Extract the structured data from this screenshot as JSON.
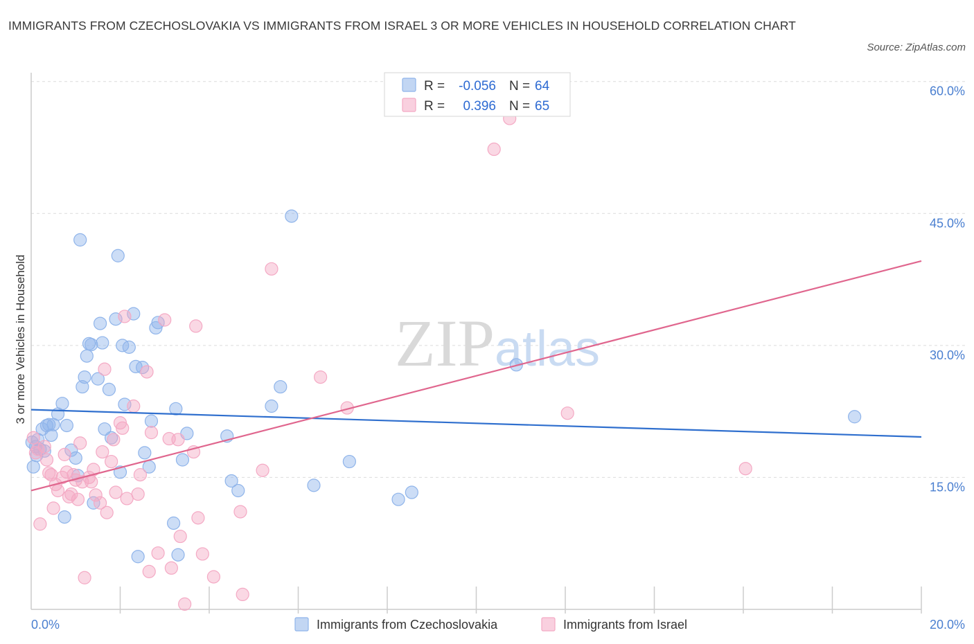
{
  "chart_data": {
    "type": "scatter",
    "title": "IMMIGRANTS FROM CZECHOSLOVAKIA VS IMMIGRANTS FROM ISRAEL 3 OR MORE VEHICLES IN HOUSEHOLD CORRELATION CHART",
    "source": "Source: ZipAtlas.com",
    "ylabel": "3 or more Vehicles in Household",
    "xlabel": "",
    "xlim": [
      0,
      20
    ],
    "ylim": [
      0,
      61
    ],
    "y_ticks": [
      15,
      30,
      45,
      60
    ],
    "y_tick_labels": [
      "15.0%",
      "30.0%",
      "45.0%",
      "60.0%"
    ],
    "x_tick_labels": [
      "0.0%",
      "20.0%"
    ],
    "watermark": "ZIPatlas",
    "legend": [
      {
        "label_r": "R =",
        "r": "-0.056",
        "label_n": "N =",
        "n": "64"
      },
      {
        "label_r": "R =",
        "r": "0.396",
        "label_n": "N =",
        "n": "65"
      }
    ],
    "series": [
      {
        "name": "Immigrants from Czechoslovakia",
        "color": "#8fb4ea",
        "line_color": "#2f6fce",
        "trend": {
          "x0": 0,
          "y0": 22.7,
          "x1": 20,
          "y1": 19.6
        },
        "points": [
          [
            0.05,
            16.2
          ],
          [
            0.1,
            18.5
          ],
          [
            0.15,
            19.3
          ],
          [
            0.2,
            18.2
          ],
          [
            0.25,
            20.5
          ],
          [
            0.3,
            18.0
          ],
          [
            0.35,
            20.9
          ],
          [
            0.4,
            21.0
          ],
          [
            0.5,
            21.0
          ],
          [
            0.6,
            22.2
          ],
          [
            0.7,
            23.4
          ],
          [
            0.75,
            10.5
          ],
          [
            0.8,
            20.9
          ],
          [
            0.9,
            18.1
          ],
          [
            1.0,
            17.2
          ],
          [
            1.05,
            15.2
          ],
          [
            1.1,
            42.0
          ],
          [
            1.15,
            25.3
          ],
          [
            1.2,
            26.4
          ],
          [
            1.25,
            28.8
          ],
          [
            1.3,
            30.2
          ],
          [
            1.35,
            30.1
          ],
          [
            1.4,
            12.1
          ],
          [
            1.5,
            26.2
          ],
          [
            1.55,
            32.5
          ],
          [
            1.6,
            30.3
          ],
          [
            1.65,
            20.5
          ],
          [
            1.75,
            25.0
          ],
          [
            1.8,
            19.5
          ],
          [
            1.9,
            33.0
          ],
          [
            1.95,
            40.2
          ],
          [
            2.0,
            15.6
          ],
          [
            2.05,
            30.0
          ],
          [
            2.1,
            23.3
          ],
          [
            2.2,
            29.8
          ],
          [
            2.3,
            33.6
          ],
          [
            2.35,
            27.6
          ],
          [
            2.4,
            6.0
          ],
          [
            2.5,
            27.5
          ],
          [
            2.55,
            17.8
          ],
          [
            2.65,
            16.2
          ],
          [
            2.7,
            21.4
          ],
          [
            2.8,
            32.0
          ],
          [
            2.85,
            32.6
          ],
          [
            3.2,
            9.8
          ],
          [
            3.25,
            22.8
          ],
          [
            3.3,
            6.2
          ],
          [
            3.4,
            17.0
          ],
          [
            3.5,
            20.0
          ],
          [
            4.4,
            19.7
          ],
          [
            4.5,
            14.6
          ],
          [
            4.65,
            13.5
          ],
          [
            5.4,
            23.1
          ],
          [
            5.6,
            25.3
          ],
          [
            5.85,
            44.7
          ],
          [
            6.35,
            14.1
          ],
          [
            7.15,
            16.8
          ],
          [
            8.25,
            12.5
          ],
          [
            8.55,
            13.3
          ],
          [
            10.9,
            27.8
          ],
          [
            18.5,
            21.9
          ],
          [
            0.02,
            19.0
          ],
          [
            0.12,
            17.5
          ],
          [
            0.45,
            19.8
          ]
        ]
      },
      {
        "name": "Immigrants from Israel",
        "color": "#f4a9c4",
        "line_color": "#e0668e",
        "trend": {
          "x0": 0,
          "y0": 13.5,
          "x1": 20,
          "y1": 39.6
        },
        "points": [
          [
            0.05,
            19.5
          ],
          [
            0.15,
            18.2
          ],
          [
            0.2,
            9.7
          ],
          [
            0.3,
            18.5
          ],
          [
            0.35,
            17.0
          ],
          [
            0.4,
            15.5
          ],
          [
            0.45,
            15.3
          ],
          [
            0.5,
            11.5
          ],
          [
            0.55,
            14.2
          ],
          [
            0.6,
            13.5
          ],
          [
            0.7,
            15.0
          ],
          [
            0.75,
            17.6
          ],
          [
            0.8,
            15.6
          ],
          [
            0.85,
            12.8
          ],
          [
            0.9,
            13.1
          ],
          [
            0.95,
            15.3
          ],
          [
            1.0,
            14.7
          ],
          [
            1.05,
            12.5
          ],
          [
            1.1,
            18.9
          ],
          [
            1.15,
            14.5
          ],
          [
            1.2,
            3.6
          ],
          [
            1.3,
            15.0
          ],
          [
            1.35,
            14.5
          ],
          [
            1.4,
            15.9
          ],
          [
            1.45,
            13.0
          ],
          [
            1.55,
            12.1
          ],
          [
            1.6,
            17.9
          ],
          [
            1.65,
            27.3
          ],
          [
            1.7,
            11.0
          ],
          [
            1.8,
            16.8
          ],
          [
            1.85,
            19.3
          ],
          [
            1.9,
            13.3
          ],
          [
            2.0,
            21.2
          ],
          [
            2.05,
            20.6
          ],
          [
            2.1,
            33.3
          ],
          [
            2.15,
            12.6
          ],
          [
            2.3,
            23.1
          ],
          [
            2.4,
            13.1
          ],
          [
            2.45,
            15.3
          ],
          [
            2.6,
            27.0
          ],
          [
            2.65,
            4.3
          ],
          [
            2.7,
            20.1
          ],
          [
            2.85,
            6.4
          ],
          [
            3.0,
            32.9
          ],
          [
            3.1,
            19.4
          ],
          [
            3.15,
            4.7
          ],
          [
            3.3,
            19.3
          ],
          [
            3.35,
            8.3
          ],
          [
            3.45,
            0.6
          ],
          [
            3.65,
            17.9
          ],
          [
            3.7,
            32.2
          ],
          [
            3.75,
            10.4
          ],
          [
            3.85,
            6.3
          ],
          [
            4.1,
            3.7
          ],
          [
            4.7,
            11.1
          ],
          [
            4.75,
            1.7
          ],
          [
            5.2,
            15.8
          ],
          [
            5.4,
            38.7
          ],
          [
            6.5,
            26.4
          ],
          [
            7.1,
            22.9
          ],
          [
            10.4,
            52.3
          ],
          [
            10.75,
            55.8
          ],
          [
            12.05,
            22.3
          ],
          [
            16.05,
            16.0
          ],
          [
            0.1,
            17.8
          ]
        ]
      }
    ]
  }
}
